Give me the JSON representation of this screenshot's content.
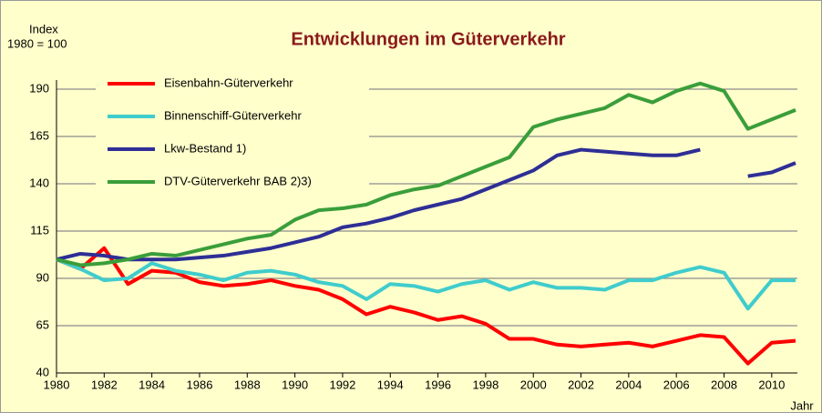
{
  "chart_data": {
    "type": "line",
    "title": "Entwicklungen im Güterverkehr",
    "y_label": [
      "Index",
      "1980 = 100"
    ],
    "x_label": "Jahr",
    "x": [
      1980,
      1981,
      1982,
      1983,
      1984,
      1985,
      1986,
      1987,
      1988,
      1989,
      1990,
      1991,
      1992,
      1993,
      1994,
      1995,
      1996,
      1997,
      1998,
      1999,
      2000,
      2001,
      2002,
      2003,
      2004,
      2005,
      2006,
      2007,
      2008,
      2009,
      2010,
      2011
    ],
    "xlim": [
      1980,
      2011
    ],
    "xticks": [
      1980,
      1982,
      1984,
      1986,
      1988,
      1990,
      1992,
      1994,
      1996,
      1998,
      2000,
      2002,
      2004,
      2006,
      2008,
      2010
    ],
    "ylim": [
      40,
      190
    ],
    "yticks": [
      40,
      65,
      90,
      115,
      140,
      165,
      190
    ],
    "grid": true,
    "legend": "top-left",
    "series": [
      {
        "name": "Eisenbahn-Güterverkehr",
        "color": "#ff0000",
        "values": [
          100,
          95,
          106,
          87,
          94,
          93,
          88,
          86,
          87,
          89,
          86,
          84,
          79,
          71,
          75,
          72,
          68,
          70,
          66,
          58,
          58,
          55,
          54,
          55,
          56,
          54,
          57,
          60,
          59,
          45,
          56,
          57
        ]
      },
      {
        "name": "Binnenschiff-Güterverkehr",
        "color": "#40cccc",
        "values": [
          100,
          95,
          89,
          90,
          98,
          94,
          92,
          89,
          93,
          94,
          92,
          88,
          86,
          79,
          87,
          86,
          83,
          87,
          89,
          84,
          88,
          85,
          85,
          84,
          89,
          89,
          93,
          96,
          93,
          74,
          89,
          89
        ]
      },
      {
        "name": "Lkw-Bestand 1)",
        "color": "#2e2e96",
        "values": [
          100,
          103,
          102,
          100,
          100,
          100,
          101,
          102,
          104,
          106,
          109,
          112,
          117,
          119,
          122,
          126,
          129,
          132,
          137,
          142,
          147,
          155,
          158,
          157,
          156,
          155,
          155,
          158,
          null,
          144,
          146,
          151
        ]
      },
      {
        "name": "DTV-Güterverkehr BAB 2)3)",
        "color": "#3a9e3a",
        "values": [
          100,
          97,
          98,
          100,
          103,
          102,
          105,
          108,
          111,
          113,
          121,
          126,
          127,
          129,
          134,
          137,
          139,
          144,
          149,
          154,
          170,
          174,
          177,
          180,
          187,
          183,
          189,
          193,
          189,
          169,
          174,
          179
        ]
      }
    ]
  }
}
